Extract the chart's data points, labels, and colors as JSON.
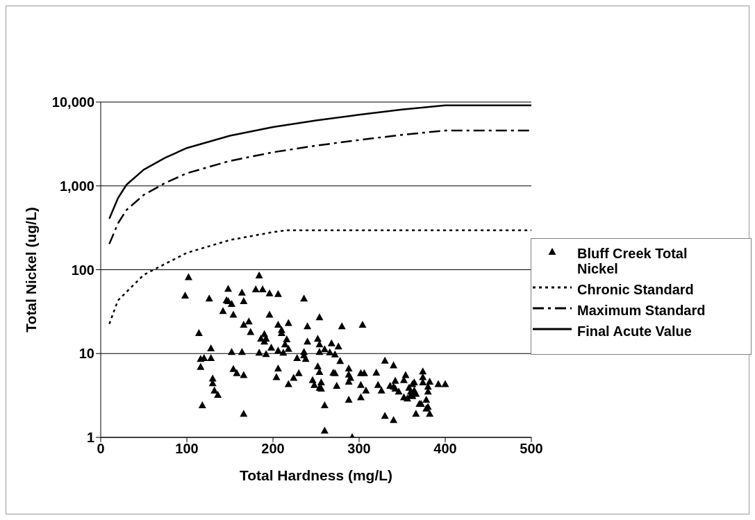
{
  "chart_data": {
    "type": "scatter",
    "xlabel": "Total Hardness (mg/L)",
    "ylabel": "Total Nickel (ug/L)",
    "log": "y",
    "grid": "y",
    "legend": "right",
    "xlim": [
      0,
      500
    ],
    "xticks": [
      0,
      100,
      200,
      300,
      400,
      500
    ],
    "ylim": [
      1,
      10000
    ],
    "yticks": [
      1,
      10,
      100,
      {
        "value": 1000,
        "label": "1,000"
      },
      {
        "value": 10000,
        "label": "10,000"
      }
    ],
    "series": [
      {
        "name": "Bluff Creek Total Nickel",
        "marker": "triangle",
        "color": "#000000",
        "x": [
          102,
          98,
          114,
          126,
          116,
          120,
          116,
          128,
          128,
          118,
          130,
          130,
          132,
          136,
          148,
          146,
          148,
          152,
          142,
          154,
          164,
          166,
          166,
          172,
          174,
          152,
          164,
          154,
          158,
          166,
          166,
          184,
          180,
          188,
          196,
          206,
          196,
          206,
          210,
          210,
          218,
          190,
          186,
          192,
          190,
          214,
          216,
          218,
          198,
          206,
          212,
          184,
          192,
          206,
          204,
          218,
          224,
          230,
          228,
          236,
          240,
          240,
          236,
          236,
          238,
          254,
          252,
          254,
          254,
          260,
          266,
          268,
          272,
          276,
          278,
          280,
          252,
          254,
          246,
          248,
          256,
          254,
          256,
          260,
          260,
          270,
          272,
          274,
          288,
          288,
          290,
          288,
          288,
          292,
          304,
          302,
          306,
          302,
          308,
          302,
          320,
          322,
          326,
          330,
          340,
          336,
          340,
          342,
          342,
          346,
          330,
          340,
          352,
          354,
          352,
          356,
          358,
          360,
          362,
          364,
          364,
          366,
          362,
          360,
          366,
          370,
          374,
          374,
          374,
          372,
          378,
          380,
          380,
          382,
          378,
          380,
          382,
          392,
          400
        ],
        "values": [
          81,
          49,
          17.5,
          45,
          8.6,
          8.8,
          6.9,
          11.5,
          8.8,
          2.4,
          5.0,
          4.4,
          3.6,
          3.2,
          59,
          43,
          42,
          39,
          32,
          29,
          53,
          42,
          22,
          24,
          18,
          10.4,
          10.4,
          6.5,
          5.8,
          5.5,
          1.9,
          85,
          58,
          58,
          52,
          51,
          29,
          22,
          19,
          17.5,
          23,
          17,
          15,
          15,
          13.8,
          12.8,
          14.7,
          11.3,
          11.7,
          10.8,
          10.2,
          10.2,
          9.8,
          6.6,
          5.2,
          4.3,
          5.1,
          5.8,
          8.8,
          45,
          21,
          13.8,
          10.4,
          9.5,
          8.6,
          27,
          14.9,
          12.8,
          10.4,
          11.2,
          10.3,
          13.2,
          9.7,
          12.1,
          8.1,
          21,
          7.0,
          6.0,
          4.8,
          4.2,
          4.5,
          3.9,
          3.8,
          2.4,
          1.2,
          5.9,
          5.8,
          4.1,
          6.6,
          5.6,
          5.1,
          4.6,
          2.8,
          1.0,
          22,
          5.8,
          5.8,
          4.2,
          3.6,
          3.0,
          5.9,
          4.2,
          3.6,
          8.2,
          7.2,
          4.1,
          4.0,
          4.7,
          3.8,
          3.5,
          1.8,
          1.6,
          4.8,
          5.5,
          3.0,
          2.9,
          3.9,
          3.5,
          4.3,
          4.5,
          3.6,
          3.3,
          3.1,
          3.2,
          1.9,
          2.5,
          6.1,
          5.2,
          4.5,
          2.5,
          2.8,
          4.0,
          3.5,
          4.6,
          2.2,
          2.3,
          1.9,
          4.3,
          4.3
        ]
      },
      {
        "name": "Chronic Standard",
        "type": "line",
        "line_style": "dotted",
        "marker": "none",
        "color": "#000000",
        "x": [
          10,
          20,
          50,
          100,
          150,
          200,
          215,
          500
        ],
        "values": [
          22.6,
          43,
          87,
          159,
          226,
          281,
          295,
          295
        ]
      },
      {
        "name": "Maximum Standard",
        "type": "line",
        "line_style": "dashed",
        "marker": "none",
        "color": "#000000",
        "x": [
          10,
          20,
          30,
          50,
          75,
          100,
          150,
          200,
          250,
          300,
          350,
          400,
          500
        ],
        "values": [
          203,
          357,
          517,
          782,
          1086,
          1415,
          1985,
          2520,
          3020,
          3530,
          4065,
          4570,
          4570
        ]
      },
      {
        "name": "Final Acute Value",
        "type": "line",
        "line_style": "solid",
        "marker": "none",
        "color": "#000000",
        "x": [
          10,
          20,
          30,
          50,
          75,
          100,
          150,
          200,
          250,
          300,
          350,
          400,
          500
        ],
        "values": [
          407,
          713,
          1033,
          1563,
          2172,
          2830,
          3970,
          5040,
          6040,
          7060,
          8130,
          9140,
          9140
        ]
      }
    ]
  }
}
